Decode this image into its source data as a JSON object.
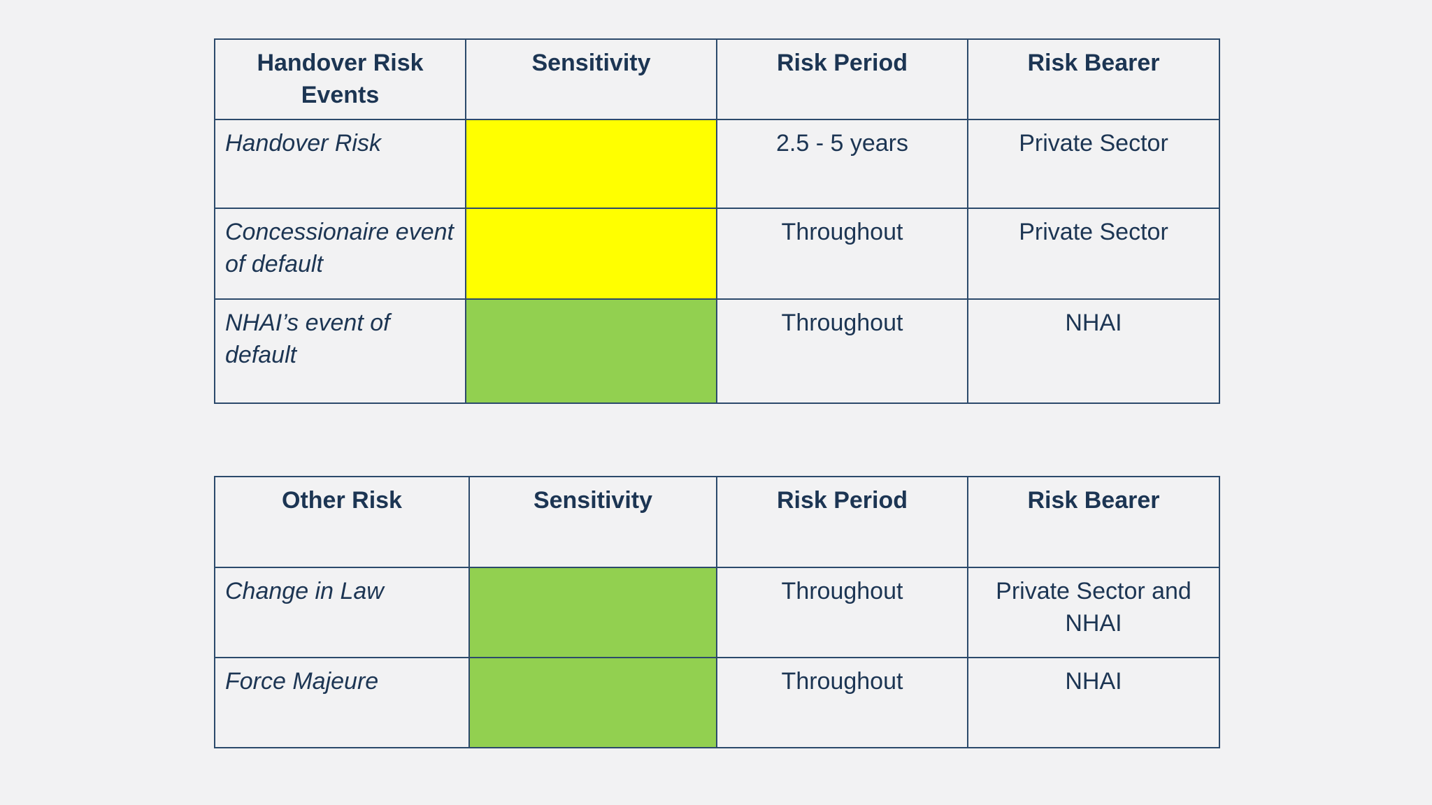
{
  "colors": {
    "yellow": "#ffff00",
    "green": "#92d050",
    "border": "#2c4a6b",
    "text": "#1c3553",
    "background": "#f2f2f3"
  },
  "handover_table": {
    "headers": [
      "Handover Risk Events",
      "Sensitivity",
      "Risk Period",
      "Risk Bearer"
    ],
    "rows": [
      {
        "event": "Handover Risk",
        "sensitivity": "yellow",
        "period": "2.5 - 5 years",
        "bearer": "Private Sector"
      },
      {
        "event": "Concessionaire event of default",
        "sensitivity": "yellow",
        "period": "Throughout",
        "bearer": "Private Sector"
      },
      {
        "event": "NHAI’s event of default",
        "sensitivity": "green",
        "period": "Throughout",
        "bearer": "NHAI"
      }
    ]
  },
  "other_table": {
    "headers": [
      "Other Risk",
      "Sensitivity",
      "Risk Period",
      "Risk Bearer"
    ],
    "rows": [
      {
        "event": "Change in Law",
        "sensitivity": "green",
        "period": "Throughout",
        "bearer": "Private Sector and NHAI"
      },
      {
        "event": "Force Majeure",
        "sensitivity": "green",
        "period": "Throughout",
        "bearer": "NHAI"
      }
    ]
  }
}
